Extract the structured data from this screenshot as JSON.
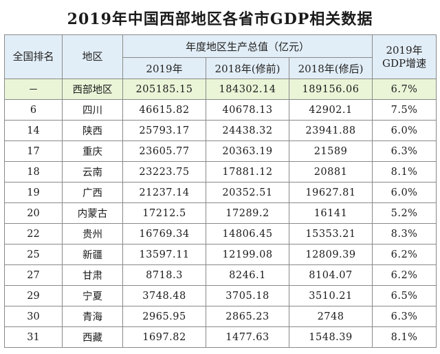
{
  "title": "2019年中国西部地区各省市GDP相关数据",
  "table": {
    "headers": {
      "rank": "全国排名",
      "region": "地区",
      "gdp_group": "年度地区生产总值（亿元）",
      "y2019": "2019年",
      "y2018_before": "2018年(修前)",
      "y2018_after": "2018年(修后)",
      "growth_line1": "2019年",
      "growth_line2": "GDP增速"
    },
    "summary": {
      "rank": "－",
      "region": "西部地区",
      "gdp_2019": "205185.15",
      "gdp_2018_before": "184302.14",
      "gdp_2018_after": "189156.06",
      "growth": "6.7%"
    },
    "rows": [
      {
        "rank": "6",
        "region": "四川",
        "gdp_2019": "46615.82",
        "gdp_2018_before": "40678.13",
        "gdp_2018_after": "42902.1",
        "growth": "7.5%"
      },
      {
        "rank": "14",
        "region": "陕西",
        "gdp_2019": "25793.17",
        "gdp_2018_before": "24438.32",
        "gdp_2018_after": "23941.88",
        "growth": "6.0%"
      },
      {
        "rank": "17",
        "region": "重庆",
        "gdp_2019": "23605.77",
        "gdp_2018_before": "20363.19",
        "gdp_2018_after": "21589",
        "growth": "6.3%"
      },
      {
        "rank": "18",
        "region": "云南",
        "gdp_2019": "23223.75",
        "gdp_2018_before": "17881.12",
        "gdp_2018_after": "20881",
        "growth": "8.1%"
      },
      {
        "rank": "19",
        "region": "广西",
        "gdp_2019": "21237.14",
        "gdp_2018_before": "20352.51",
        "gdp_2018_after": "19627.81",
        "growth": "6.0%"
      },
      {
        "rank": "20",
        "region": "内蒙古",
        "gdp_2019": "17212.5",
        "gdp_2018_before": "17289.2",
        "gdp_2018_after": "16141",
        "growth": "5.2%"
      },
      {
        "rank": "22",
        "region": "贵州",
        "gdp_2019": "16769.34",
        "gdp_2018_before": "14806.45",
        "gdp_2018_after": "15353.21",
        "growth": "8.3%"
      },
      {
        "rank": "25",
        "region": "新疆",
        "gdp_2019": "13597.11",
        "gdp_2018_before": "12199.08",
        "gdp_2018_after": "12809.39",
        "growth": "6.2%"
      },
      {
        "rank": "27",
        "region": "甘肃",
        "gdp_2019": "8718.3",
        "gdp_2018_before": "8246.1",
        "gdp_2018_after": "8104.07",
        "growth": "6.2%"
      },
      {
        "rank": "29",
        "region": "宁夏",
        "gdp_2019": "3748.48",
        "gdp_2018_before": "3705.18",
        "gdp_2018_after": "3510.21",
        "growth": "6.5%"
      },
      {
        "rank": "30",
        "region": "青海",
        "gdp_2019": "2965.95",
        "gdp_2018_before": "2865.23",
        "gdp_2018_after": "2748",
        "growth": "6.3%"
      },
      {
        "rank": "31",
        "region": "西藏",
        "gdp_2019": "1697.82",
        "gdp_2018_before": "1477.63",
        "gdp_2018_after": "1548.39",
        "growth": "8.1%"
      }
    ]
  },
  "colors": {
    "header_bg": "#e2eef7",
    "summary_bg": "#eaf5d8",
    "border": "#888888"
  }
}
